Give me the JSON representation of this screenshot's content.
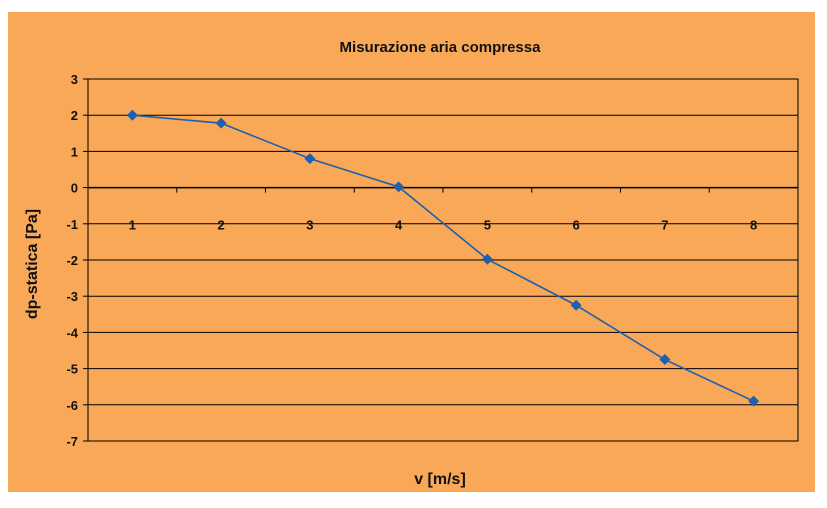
{
  "chart_data": {
    "type": "line",
    "title": "Misurazione aria compressa",
    "xlabel": "v [m/s]",
    "ylabel": "dp-statica [Pa]",
    "categories": [
      "1",
      "2",
      "3",
      "4",
      "5",
      "6",
      "7",
      "8"
    ],
    "series": [
      {
        "values": [
          2.0,
          1.78,
          0.8,
          0.02,
          -1.98,
          -3.25,
          -4.75,
          -5.9
        ]
      }
    ],
    "yticks": [
      "3",
      "2",
      "1",
      "0",
      "-1",
      "-2",
      "-3",
      "-4",
      "-5",
      "-6",
      "-7"
    ],
    "ylim": [
      -7,
      3
    ],
    "grid": true,
    "legend": "none",
    "colors": {
      "background": "#f9a857",
      "series": "#1f5fae",
      "grid": "#000000",
      "text": "#111111"
    }
  }
}
